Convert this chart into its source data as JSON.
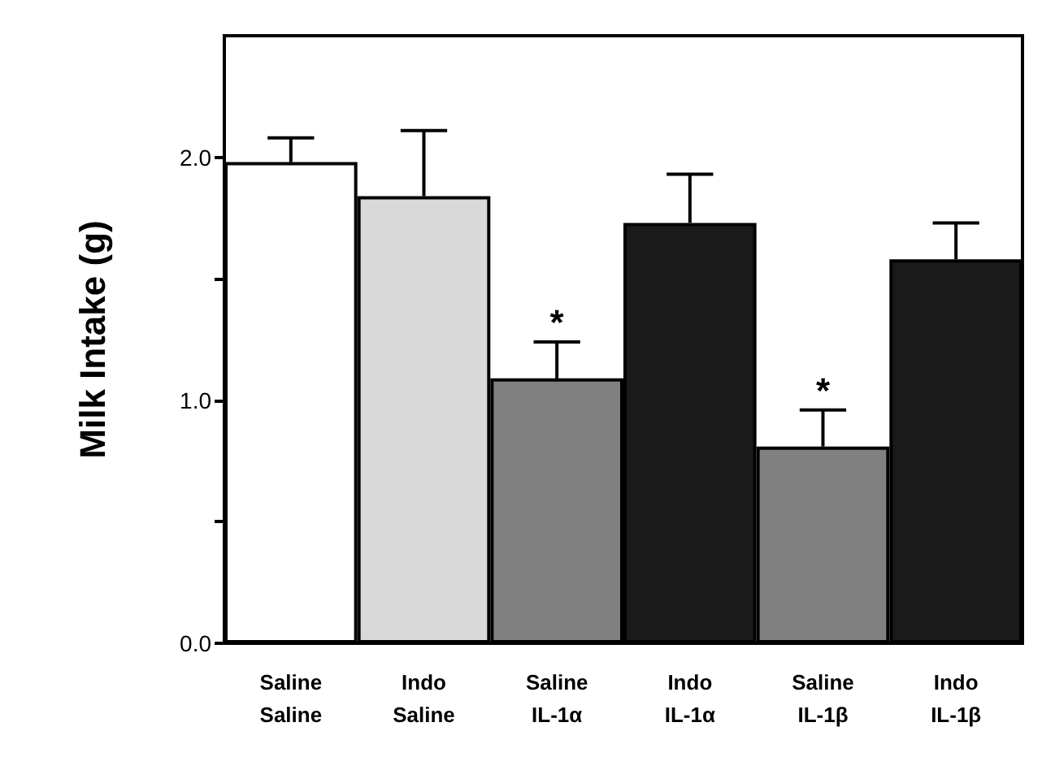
{
  "chart_data": {
    "type": "bar",
    "ylabel": "Milk Intake (g)",
    "categories": [
      "Saline\nSaline",
      "Indo\nSaline",
      "Saline\nIL-1α",
      "Indo\nIL-1α",
      "Saline\nIL-1β",
      "Indo\nIL-1β"
    ],
    "values": [
      1.98,
      1.84,
      1.09,
      1.73,
      0.81,
      1.58
    ],
    "errors": [
      0.1,
      0.27,
      0.15,
      0.2,
      0.15,
      0.15
    ],
    "colors": [
      "#ffffff",
      "#d9d9d9",
      "#808080",
      "#1a1a1a",
      "#808080",
      "#1a1a1a"
    ],
    "ylim": [
      0,
      2.5
    ],
    "yticks": [
      {
        "value": 0,
        "label": "0.0"
      },
      {
        "value": 0.5,
        "label": null
      },
      {
        "value": 1,
        "label": "1.0"
      },
      {
        "value": 1.5,
        "label": null
      },
      {
        "value": 2,
        "label": "2.0"
      }
    ],
    "annotations": [
      {
        "text": "*",
        "x": "Saline\nIL-1α",
        "y": 1.09
      },
      {
        "text": "*",
        "x": "Saline\nIL-1β",
        "y": 0.81
      }
    ],
    "grid": false
  }
}
